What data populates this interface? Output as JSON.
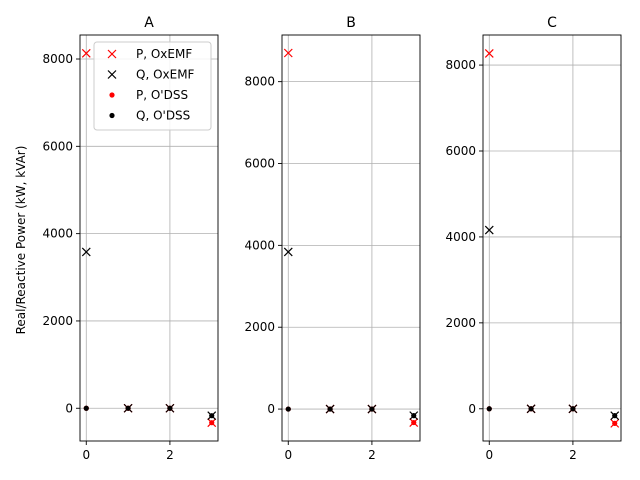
{
  "chart_data": {
    "type": "scatter",
    "ylabel": "Real/Reactive Power (kW, kVAr)",
    "colors": {
      "P": "#ff0000",
      "Q": "#000000"
    },
    "legend": {
      "placement": "top-right",
      "panel": 0,
      "entries": [
        {
          "label": "P, OxEMF",
          "marker": "x",
          "color": "#ff0000"
        },
        {
          "label": "Q, OxEMF",
          "marker": "x",
          "color": "#000000"
        },
        {
          "label": "P, O'DSS",
          "marker": "dot",
          "color": "#ff0000"
        },
        {
          "label": "Q, O'DSS",
          "marker": "dot",
          "color": "#000000"
        }
      ]
    },
    "panels": [
      {
        "title": "A",
        "xlim": [
          -0.15,
          3.15
        ],
        "ylim": [
          -750,
          8550
        ],
        "xticks": [
          0,
          2
        ],
        "yticks": [
          0,
          2000,
          4000,
          6000,
          8000
        ],
        "x": [
          0,
          1,
          2,
          3
        ],
        "series": [
          {
            "name": "P, OxEMF",
            "marker": "x",
            "color": "#ff0000",
            "y": [
              8130,
              0,
              0,
              -330
            ]
          },
          {
            "name": "Q, OxEMF",
            "marker": "x",
            "color": "#000000",
            "y": [
              3580,
              0,
              0,
              -170
            ]
          },
          {
            "name": "P, O'DSS",
            "marker": "dot",
            "color": "#ff0000",
            "y": [
              0,
              0,
              0,
              -330
            ]
          },
          {
            "name": "Q, O'DSS",
            "marker": "dot",
            "color": "#000000",
            "y": [
              0,
              0,
              0,
              -170
            ]
          }
        ]
      },
      {
        "title": "B",
        "xlim": [
          -0.15,
          3.15
        ],
        "ylim": [
          -780,
          9140
        ],
        "xticks": [
          0,
          2
        ],
        "yticks": [
          0,
          2000,
          4000,
          6000,
          8000
        ],
        "x": [
          0,
          1,
          2,
          3
        ],
        "series": [
          {
            "name": "P, OxEMF",
            "marker": "x",
            "color": "#ff0000",
            "y": [
              8700,
              0,
              0,
              -330
            ]
          },
          {
            "name": "Q, OxEMF",
            "marker": "x",
            "color": "#000000",
            "y": [
              3840,
              0,
              0,
              -160
            ]
          },
          {
            "name": "P, O'DSS",
            "marker": "dot",
            "color": "#ff0000",
            "y": [
              0,
              0,
              0,
              -330
            ]
          },
          {
            "name": "Q, O'DSS",
            "marker": "dot",
            "color": "#000000",
            "y": [
              0,
              0,
              0,
              -160
            ]
          }
        ]
      },
      {
        "title": "C",
        "xlim": [
          -0.15,
          3.15
        ],
        "ylim": [
          -750,
          8700
        ],
        "xticks": [
          0,
          2
        ],
        "yticks": [
          0,
          2000,
          4000,
          6000,
          8000
        ],
        "x": [
          0,
          1,
          2,
          3
        ],
        "series": [
          {
            "name": "P, OxEMF",
            "marker": "x",
            "color": "#ff0000",
            "y": [
              8270,
              0,
              0,
              -340
            ]
          },
          {
            "name": "Q, OxEMF",
            "marker": "x",
            "color": "#000000",
            "y": [
              4160,
              0,
              0,
              -160
            ]
          },
          {
            "name": "P, O'DSS",
            "marker": "dot",
            "color": "#ff0000",
            "y": [
              0,
              0,
              0,
              -340
            ]
          },
          {
            "name": "Q, O'DSS",
            "marker": "dot",
            "color": "#000000",
            "y": [
              0,
              0,
              0,
              -160
            ]
          }
        ]
      }
    ]
  }
}
